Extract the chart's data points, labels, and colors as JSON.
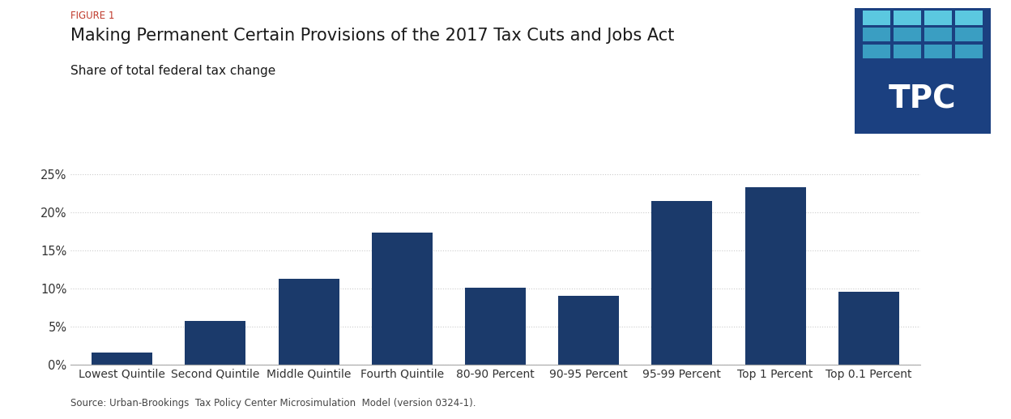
{
  "figure_label": "FIGURE 1",
  "title": "Making Permanent Certain Provisions of the 2017 Tax Cuts and Jobs Act",
  "subtitle": "Share of total federal tax change",
  "source": "Source: Urban-Brookings  Tax Policy Center Microsimulation  Model (version 0324-1).",
  "categories": [
    "Lowest Quintile",
    "Second Quintile",
    "Middle Quintile",
    "Fourth Quintile",
    "80-90 Percent",
    "90-95 Percent",
    "95-99 Percent",
    "Top 1 Percent",
    "Top 0.1 Percent"
  ],
  "values": [
    1.6,
    5.7,
    11.3,
    17.3,
    10.1,
    9.0,
    21.5,
    23.3,
    9.6
  ],
  "bar_color": "#1b3a6b",
  "ylim": [
    0,
    0.275
  ],
  "yticks": [
    0.0,
    0.05,
    0.1,
    0.15,
    0.2,
    0.25
  ],
  "ytick_labels": [
    "0%",
    "5%",
    "10%",
    "15%",
    "20%",
    "25%"
  ],
  "figure_label_color": "#c0392b",
  "title_color": "#1a1a1a",
  "subtitle_color": "#1a1a1a",
  "source_color": "#444444",
  "background_color": "#ffffff",
  "grid_color": "#cccccc",
  "logo_bg_color": "#1b4080",
  "logo_square_light": "#5bc8e0",
  "logo_square_mid": "#3a9ec2",
  "logo_text_color": "#ffffff",
  "figsize": [
    12.48,
    5.17
  ],
  "dpi": 100
}
